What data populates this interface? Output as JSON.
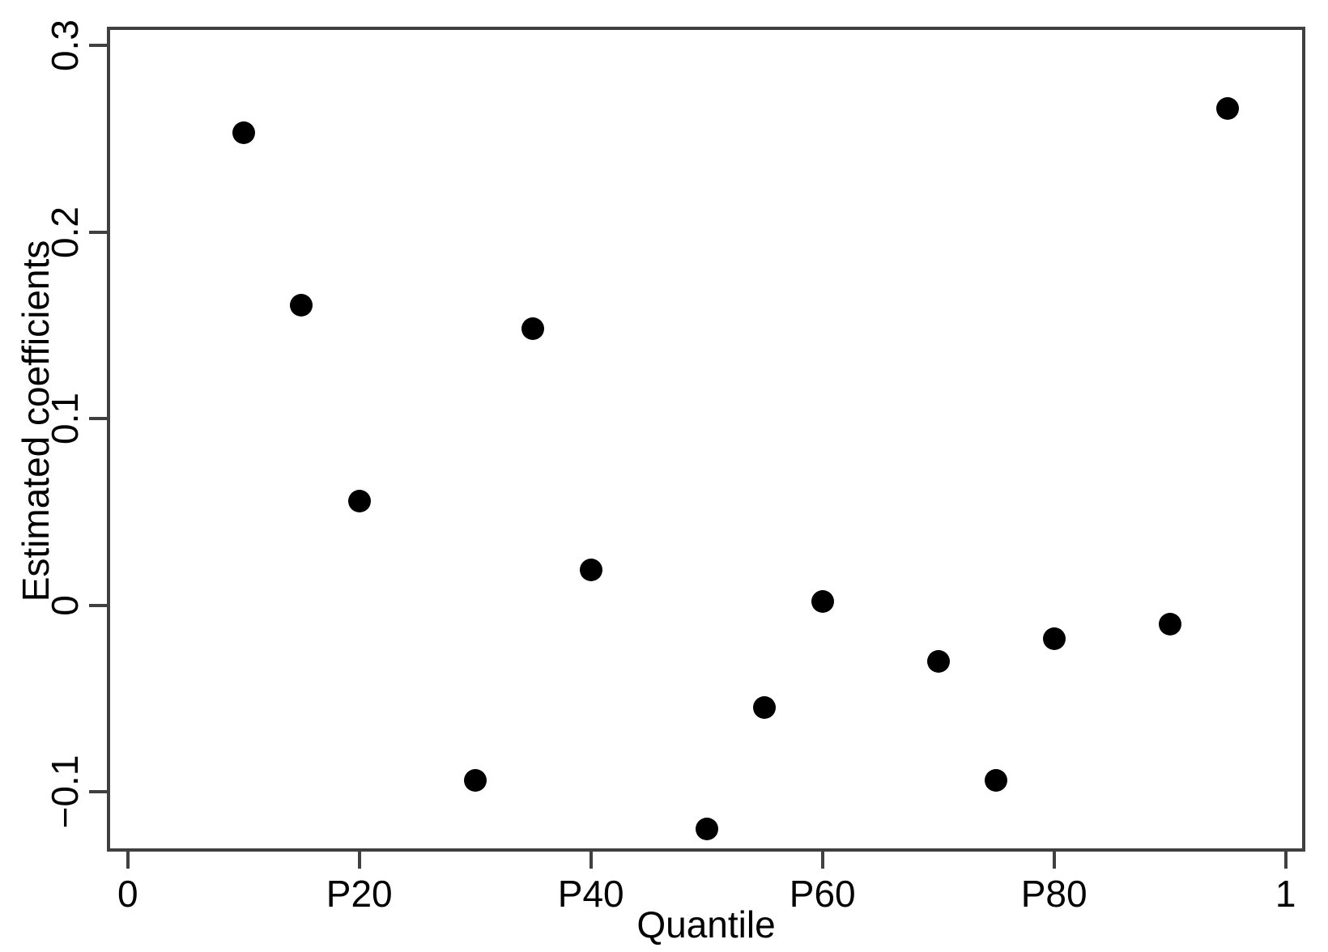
{
  "figure": {
    "background_color": "#ffffff",
    "axis_color": "#404040",
    "text_color": "#000000",
    "point_color": "#000000"
  },
  "chart_data": {
    "type": "scatter",
    "title": "",
    "xlabel": "Quantile",
    "ylabel": "Estimated coefficients",
    "xlim": [
      -1.8,
      101.7
    ],
    "ylim": [
      -0.132,
      0.31
    ],
    "grid": false,
    "legend": "none",
    "x_ticks": [
      {
        "value": 0,
        "label": "0"
      },
      {
        "value": 20,
        "label": "P20"
      },
      {
        "value": 40,
        "label": "P40"
      },
      {
        "value": 60,
        "label": "P60"
      },
      {
        "value": 80,
        "label": "P80"
      },
      {
        "value": 100,
        "label": "1"
      }
    ],
    "y_ticks": [
      {
        "value": -0.1,
        "label": "−0.1"
      },
      {
        "value": 0,
        "label": "0"
      },
      {
        "value": 0.1,
        "label": "0.1"
      },
      {
        "value": 0.2,
        "label": "0.2"
      },
      {
        "value": 0.3,
        "label": "0.3"
      }
    ],
    "points": [
      {
        "x": 10,
        "y": 0.253
      },
      {
        "x": 15,
        "y": 0.161
      },
      {
        "x": 20,
        "y": 0.056
      },
      {
        "x": 30,
        "y": -0.094
      },
      {
        "x": 35,
        "y": 0.148
      },
      {
        "x": 40,
        "y": 0.019
      },
      {
        "x": 50,
        "y": -0.12
      },
      {
        "x": 55,
        "y": -0.055
      },
      {
        "x": 60,
        "y": 0.002
      },
      {
        "x": 70,
        "y": -0.03
      },
      {
        "x": 75,
        "y": -0.094
      },
      {
        "x": 80,
        "y": -0.018
      },
      {
        "x": 90,
        "y": -0.01
      },
      {
        "x": 95,
        "y": 0.266
      }
    ]
  }
}
